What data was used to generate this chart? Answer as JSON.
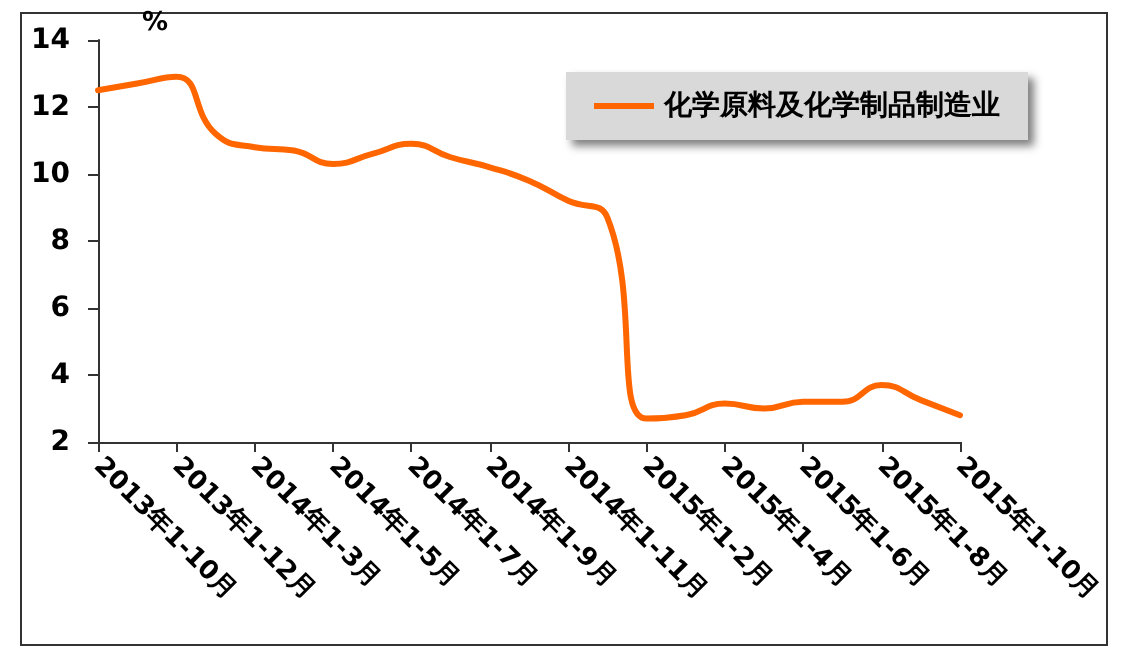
{
  "chart_data": {
    "type": "line",
    "ylabel": "%",
    "categories": [
      "2013年1-10月",
      null,
      "2013年1-12月",
      null,
      "2014年1-3月",
      null,
      "2014年1-5月",
      null,
      "2014年1-7月",
      null,
      "2014年1-9月",
      null,
      "2014年1-11月",
      null,
      "2015年1-2月",
      null,
      "2015年1-4月",
      null,
      "2015年1-6月",
      null,
      "2015年1-8月",
      null,
      "2015年1-10月"
    ],
    "series": [
      {
        "name": "化学原料及化学制品制造业",
        "color": "#ff6600",
        "values": [
          12.5,
          12.7,
          12.9,
          11.2,
          10.8,
          10.7,
          10.3,
          10.6,
          10.9,
          10.5,
          10.2,
          9.8,
          9.2,
          8.7,
          2.7,
          2.8,
          3.15,
          3.0,
          3.2,
          3.2,
          3.7,
          3.25,
          2.8
        ]
      }
    ],
    "ylim": [
      2,
      14
    ],
    "yticks": [
      2,
      4,
      6,
      8,
      10,
      12,
      14
    ],
    "grid": false,
    "legend": "top right",
    "marker": "none",
    "line_style": "solid"
  }
}
